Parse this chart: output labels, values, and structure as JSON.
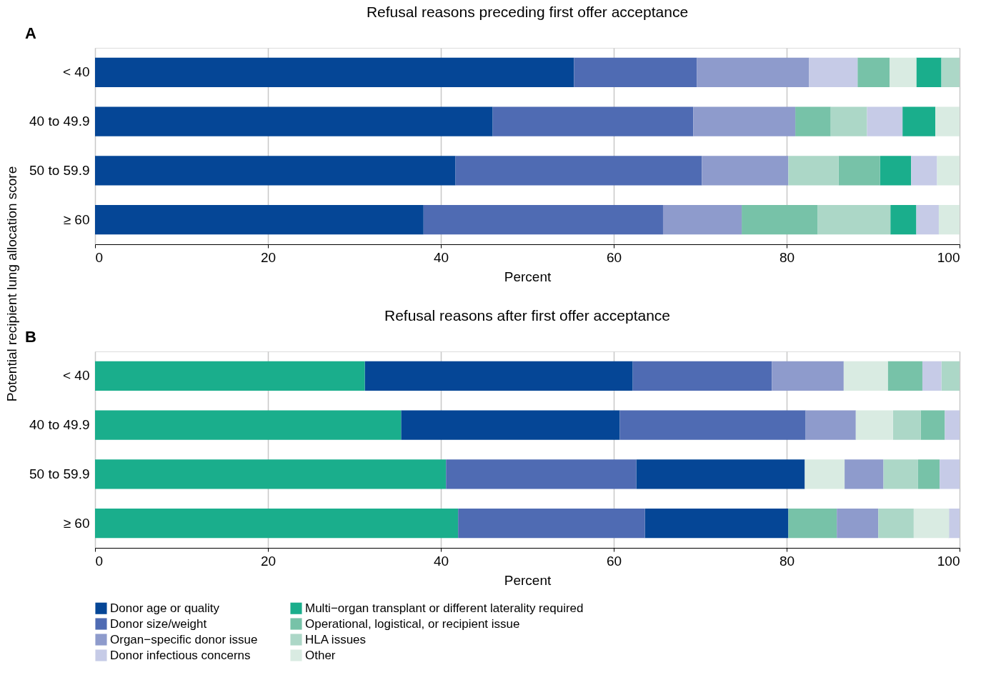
{
  "chart_data": [
    {
      "type": "bar",
      "orientation": "horizontal",
      "title": "Refusal reasons preceding first offer acceptance",
      "annotations": [
        "A"
      ],
      "xlabel": "Percent",
      "ylabel": "Potential recipient lung allocation score",
      "categories": [
        "< 40",
        "40 to 49.9",
        "50 to 59.9",
        "≥ 60"
      ],
      "xlim": [
        0,
        100
      ],
      "xticks": [
        0,
        20,
        40,
        60,
        80,
        100
      ],
      "grid": "x",
      "legend": "bottom",
      "series": [
        {
          "name": "Donor age or quality",
          "color": "#054696",
          "values": [
            55.4,
            46.0,
            41.7,
            38.0
          ],
          "base": [
            0,
            0,
            0,
            0
          ]
        },
        {
          "name": "Multi−organ transplant or different laterality required",
          "color": "#1aae8c",
          "values": [
            2.9,
            3.8,
            3.6,
            3.0
          ],
          "base": [
            95.0,
            93.4,
            90.8,
            92.0
          ]
        },
        {
          "name": "Donor size/weight",
          "color": "#4f6bb3",
          "values": [
            14.2,
            23.2,
            28.5,
            27.7
          ],
          "base": [
            55.4,
            46.0,
            41.7,
            38.0
          ]
        },
        {
          "name": "Operational, logistical, or recipient issue",
          "color": "#77c2a8",
          "values": [
            3.7,
            4.1,
            4.8,
            8.8
          ],
          "base": [
            88.2,
            81.0,
            86.0,
            74.8
          ]
        },
        {
          "name": "Organ−specific donor issue",
          "color": "#8e9bcc",
          "values": [
            13.0,
            11.8,
            10.0,
            9.1
          ],
          "base": [
            69.6,
            69.2,
            70.2,
            65.7
          ]
        },
        {
          "name": "HLA issues",
          "color": "#acd7c7",
          "values": [
            2.1,
            4.2,
            5.8,
            8.4
          ],
          "base": [
            97.9,
            85.1,
            80.2,
            83.6
          ]
        },
        {
          "name": "Donor infectious concerns",
          "color": "#c6cbe7",
          "values": [
            5.6,
            4.1,
            3.0,
            2.6
          ],
          "base": [
            82.6,
            89.3,
            94.4,
            95.0
          ]
        },
        {
          "name": "Other",
          "color": "#d9ebe2",
          "values": [
            3.1,
            2.8,
            2.6,
            2.4
          ],
          "base": [
            91.9,
            97.2,
            97.4,
            97.6
          ]
        }
      ]
    },
    {
      "type": "bar",
      "orientation": "horizontal",
      "title": "Refusal reasons after first offer acceptance",
      "annotations": [
        "B"
      ],
      "xlabel": "Percent",
      "categories": [
        "< 40",
        "40 to 49.9",
        "50 to 59.9",
        "≥ 60"
      ],
      "xlim": [
        0,
        100
      ],
      "xticks": [
        0,
        20,
        40,
        60,
        80,
        100
      ],
      "grid": "x",
      "legend": "bottom",
      "series": [
        {
          "name": "Donor age or quality",
          "color": "#054696",
          "values": [
            31.0,
            25.3,
            19.5,
            16.6
          ],
          "base": [
            31.2,
            35.4,
            62.6,
            63.6
          ]
        },
        {
          "name": "Multi−organ transplant or different laterality required",
          "color": "#1aae8c",
          "values": [
            31.2,
            35.4,
            40.6,
            42.0
          ],
          "base": [
            0,
            0,
            0,
            0
          ]
        },
        {
          "name": "Donor size/weight",
          "color": "#4f6bb3",
          "values": [
            16.1,
            21.5,
            22.0,
            21.6
          ],
          "base": [
            62.2,
            60.7,
            40.6,
            42.0
          ]
        },
        {
          "name": "Operational, logistical, or recipient issue",
          "color": "#77c2a8",
          "values": [
            4.0,
            2.8,
            2.5,
            5.6
          ],
          "base": [
            91.7,
            95.5,
            95.2,
            80.2
          ]
        },
        {
          "name": "Organ−specific donor issue",
          "color": "#8e9bcc",
          "values": [
            8.3,
            5.8,
            4.5,
            4.8
          ],
          "base": [
            78.3,
            82.2,
            86.7,
            85.8
          ]
        },
        {
          "name": "HLA issues",
          "color": "#acd7c7",
          "values": [
            2.1,
            3.2,
            4.0,
            4.1
          ],
          "base": [
            97.9,
            92.3,
            91.2,
            90.6
          ]
        },
        {
          "name": "Donor infectious concerns",
          "color": "#c6cbe7",
          "values": [
            2.2,
            1.7,
            2.3,
            1.3
          ],
          "base": [
            95.7,
            98.3,
            97.7,
            98.7
          ]
        },
        {
          "name": "Other",
          "color": "#d9ebe2",
          "values": [
            5.1,
            4.3,
            4.6,
            4.1
          ],
          "base": [
            86.6,
            88.0,
            82.1,
            94.7
          ]
        }
      ]
    }
  ]
}
